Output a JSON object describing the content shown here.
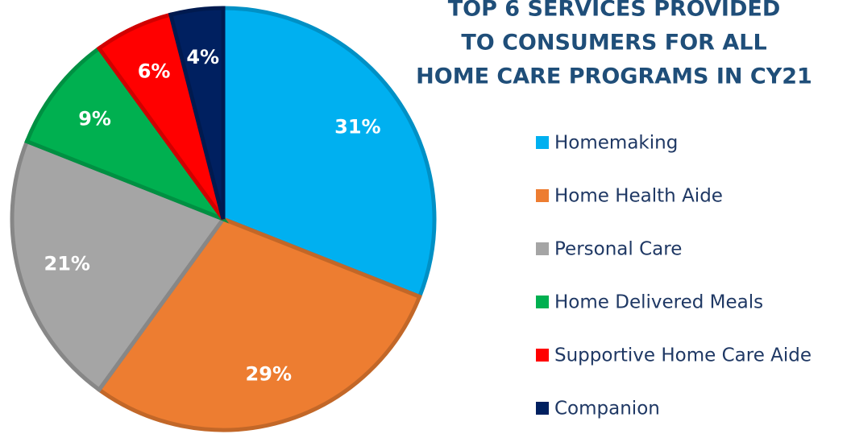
{
  "chart_data": {
    "type": "pie",
    "title": [
      "TOP 6 SERVICES PROVIDED",
      "TO CONSUMERS FOR ALL",
      "HOME CARE PROGRAMS IN CY21"
    ],
    "categories": [
      "Homemaking",
      "Home Health Aide",
      "Personal Care",
      "Home Delivered Meals",
      "Supportive Home Care Aide",
      "Companion"
    ],
    "values": [
      31,
      29,
      21,
      9,
      6,
      4
    ],
    "value_labels": [
      "31%",
      "29%",
      "21%",
      "9%",
      "6%",
      "4%"
    ],
    "colors": [
      "#00b0f0",
      "#ed7d31",
      "#a5a5a5",
      "#00b050",
      "#ff0000",
      "#002060"
    ],
    "legend": "right"
  }
}
